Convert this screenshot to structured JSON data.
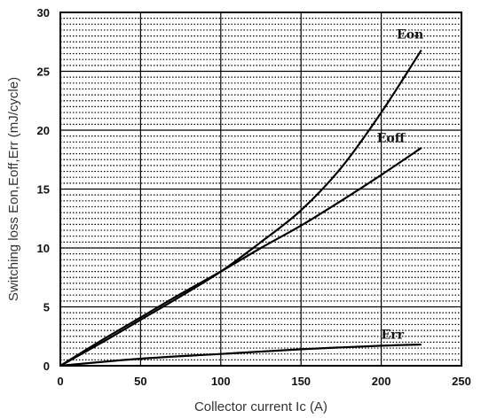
{
  "chart_data": {
    "type": "line",
    "title": "",
    "xlabel": "Collector current  Ic (A)",
    "ylabel": "Switching loss  Eon,Eoff,Err (mJ/cycle)",
    "xlim": [
      0,
      250
    ],
    "ylim": [
      0,
      30
    ],
    "x_ticks": [
      "0",
      "50",
      "100",
      "150",
      "200",
      "250"
    ],
    "y_ticks": [
      "0",
      "5",
      "10",
      "15",
      "20",
      "25",
      "30"
    ],
    "grid": true,
    "legend": "none (series labelled on curves)",
    "series": [
      {
        "name": "Eon",
        "color": "#000000",
        "x": [
          0,
          25,
          50,
          75,
          100,
          125,
          150,
          175,
          200,
          225
        ],
        "y": [
          0,
          1.9,
          3.9,
          5.9,
          8.0,
          10.5,
          13.2,
          16.8,
          21.5,
          26.8
        ]
      },
      {
        "name": "Eoff",
        "color": "#000000",
        "x": [
          0,
          25,
          50,
          75,
          100,
          125,
          150,
          175,
          200,
          225
        ],
        "y": [
          0,
          2.1,
          4.1,
          6.1,
          8.0,
          10.0,
          11.9,
          14.0,
          16.2,
          18.5
        ]
      },
      {
        "name": "Err",
        "color": "#000000",
        "x": [
          0,
          50,
          100,
          150,
          200,
          225
        ],
        "y": [
          0,
          0.6,
          1.0,
          1.4,
          1.7,
          1.8
        ]
      }
    ]
  }
}
